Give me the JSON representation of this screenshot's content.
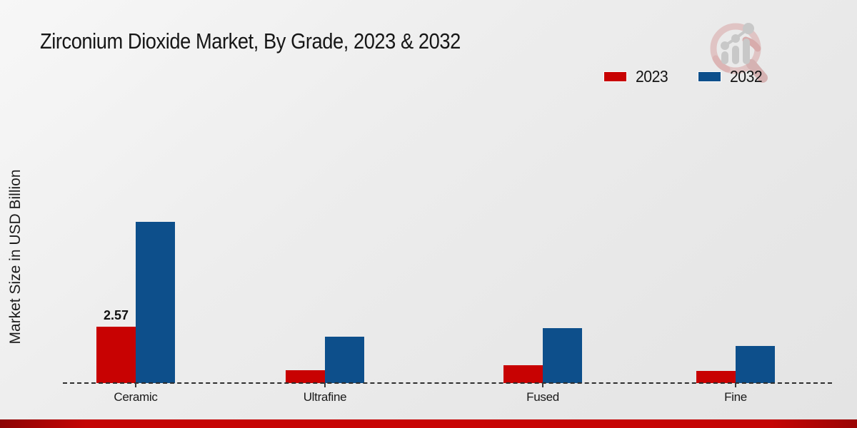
{
  "title": "Zirconium Dioxide Market, By Grade, 2023 & 2032",
  "ylabel": "Market Size in USD Billion",
  "legend": [
    {
      "label": "2023",
      "color": "#c80202"
    },
    {
      "label": "2032",
      "color": "#0d4f8b"
    }
  ],
  "watermark_icon": "magnifier-bar-chart-logo",
  "footer_accent_color": "#c40404",
  "chart_data": {
    "type": "bar",
    "title": "Zirconium Dioxide Market, By Grade, 2023 & 2032",
    "ylabel": "Market Size in USD Billion",
    "xlabel": "",
    "categories": [
      "Ceramic",
      "Ultrafine",
      "Fused",
      "Fine"
    ],
    "series": [
      {
        "name": "2023",
        "color": "#c80202",
        "values": [
          2.57,
          0.6,
          0.8,
          0.55
        ],
        "data_labels": [
          "2.57",
          null,
          null,
          null
        ]
      },
      {
        "name": "2032",
        "color": "#0d4f8b",
        "values": [
          7.35,
          2.1,
          2.5,
          1.7
        ],
        "data_labels": [
          null,
          null,
          null,
          null
        ]
      }
    ],
    "ylim": [
      0,
      8
    ],
    "y_axis_ticks_visible": false,
    "grid": false,
    "baseline_style": "dashed",
    "legend_position": "top-right"
  }
}
